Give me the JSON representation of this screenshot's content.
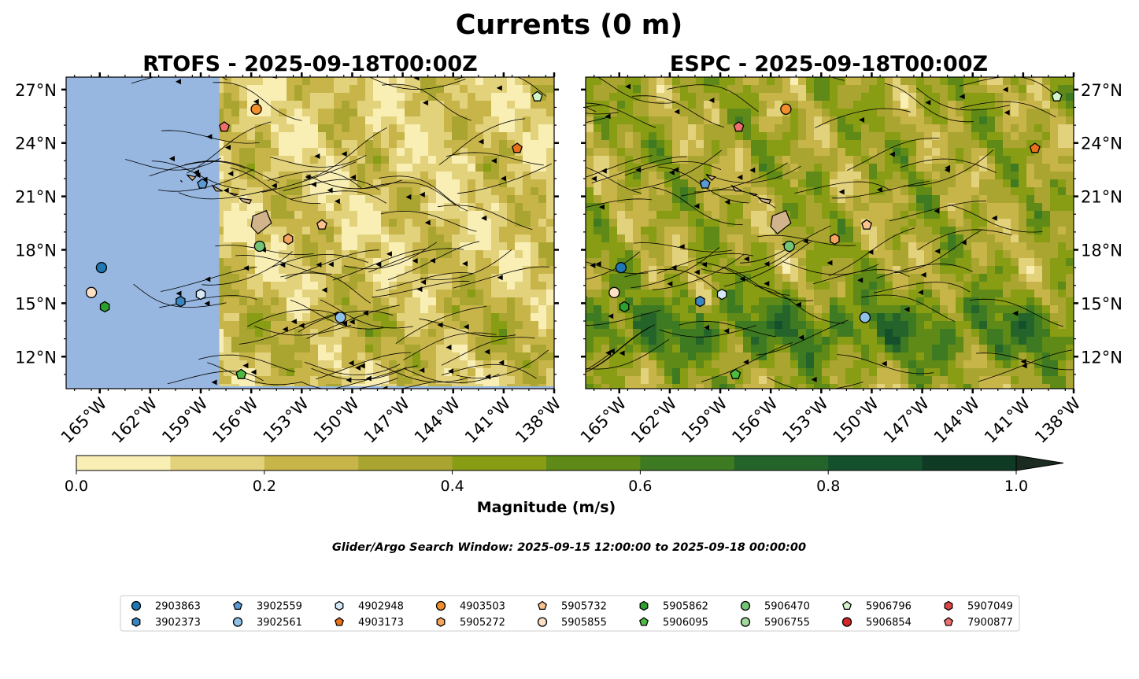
{
  "figure": {
    "suptitle": "Currents (0 m)",
    "search_window": "Glider/Argo Search Window: 2025-09-15 12:00:00 to 2025-09-18 00:00:00"
  },
  "chart_data": [
    {
      "type": "heatmap",
      "title": "RTOFS - 2025-09-18T00:00Z",
      "model": "RTOFS",
      "lon_range": [
        -167,
        -138
      ],
      "lat_range": [
        10.2,
        27.7
      ],
      "x_ticks": [
        "165°W",
        "162°W",
        "159°W",
        "156°W",
        "153°W",
        "150°W",
        "147°W",
        "144°W",
        "141°W",
        "138°W"
      ],
      "x_tick_values": [
        -165,
        -162,
        -159,
        -156,
        -153,
        -150,
        -147,
        -144,
        -141,
        -138
      ],
      "y_ticks": [
        "27°N",
        "24°N",
        "21°N",
        "18°N",
        "15°N",
        "12°N"
      ],
      "y_tick_values": [
        27,
        24,
        21,
        18,
        15,
        12
      ],
      "no_data_west_of": -157.9,
      "markers": [
        {
          "id": "2903863",
          "lon": -164.9,
          "lat": 17.0
        },
        {
          "id": "3902373",
          "lon": -160.2,
          "lat": 15.1
        },
        {
          "id": "3902559",
          "lon": -158.9,
          "lat": 21.7
        },
        {
          "id": "3902561",
          "lon": -150.7,
          "lat": 14.2
        },
        {
          "id": "4902948",
          "lon": -159.0,
          "lat": 15.5
        },
        {
          "id": "4903173",
          "lon": -140.2,
          "lat": 23.7
        },
        {
          "id": "4903503",
          "lon": -155.7,
          "lat": 25.9
        },
        {
          "id": "5905272",
          "lon": -153.8,
          "lat": 18.6
        },
        {
          "id": "5905732",
          "lon": -151.8,
          "lat": 19.4
        },
        {
          "id": "5905855",
          "lon": -165.5,
          "lat": 15.6
        },
        {
          "id": "5905862",
          "lon": -164.7,
          "lat": 14.8
        },
        {
          "id": "5906095",
          "lon": -156.6,
          "lat": 11.0
        },
        {
          "id": "5906470",
          "lon": -155.5,
          "lat": 18.2
        },
        {
          "id": "5906796",
          "lon": -139.0,
          "lat": 26.6
        },
        {
          "id": "7900877",
          "lon": -157.6,
          "lat": 24.9
        }
      ]
    },
    {
      "type": "heatmap",
      "title": "ESPC - 2025-09-18T00:00Z",
      "model": "ESPC",
      "lon_range": [
        -167,
        -138
      ],
      "lat_range": [
        10.2,
        27.7
      ],
      "x_ticks": [
        "165°W",
        "162°W",
        "159°W",
        "156°W",
        "153°W",
        "150°W",
        "147°W",
        "144°W",
        "141°W",
        "138°W"
      ],
      "x_tick_values": [
        -165,
        -162,
        -159,
        -156,
        -153,
        -150,
        -147,
        -144,
        -141,
        -138
      ],
      "y_ticks": [
        "27°N",
        "24°N",
        "21°N",
        "18°N",
        "15°N",
        "12°N"
      ],
      "y_tick_values": [
        27,
        24,
        21,
        18,
        15,
        12
      ],
      "markers": [
        {
          "id": "2903863",
          "lon": -164.9,
          "lat": 17.0
        },
        {
          "id": "3902373",
          "lon": -160.2,
          "lat": 15.1
        },
        {
          "id": "3902559",
          "lon": -159.9,
          "lat": 21.7
        },
        {
          "id": "3902561",
          "lon": -150.4,
          "lat": 14.2
        },
        {
          "id": "4902948",
          "lon": -158.9,
          "lat": 15.5
        },
        {
          "id": "4903173",
          "lon": -140.3,
          "lat": 23.7
        },
        {
          "id": "4903503",
          "lon": -155.1,
          "lat": 25.9
        },
        {
          "id": "5905272",
          "lon": -152.2,
          "lat": 18.6
        },
        {
          "id": "5905732",
          "lon": -150.3,
          "lat": 19.4
        },
        {
          "id": "5905855",
          "lon": -165.3,
          "lat": 15.6
        },
        {
          "id": "5905862",
          "lon": -164.7,
          "lat": 14.8
        },
        {
          "id": "5906095",
          "lon": -158.1,
          "lat": 11.0
        },
        {
          "id": "5906470",
          "lon": -154.9,
          "lat": 18.2
        },
        {
          "id": "5906796",
          "lon": -139.0,
          "lat": 26.6
        },
        {
          "id": "7900877",
          "lon": -157.9,
          "lat": 24.9
        }
      ]
    }
  ],
  "colorbar": {
    "label": "Magnitude (m/s)",
    "range": [
      0.0,
      1.0
    ],
    "ticks": [
      "0.0",
      "0.2",
      "0.4",
      "0.6",
      "0.8",
      "1.0"
    ],
    "tick_values": [
      0.0,
      0.2,
      0.4,
      0.6,
      0.8,
      1.0
    ],
    "levels": [
      0.0,
      0.1,
      0.2,
      0.3,
      0.4,
      0.5,
      0.6,
      0.7,
      0.8,
      0.9,
      1.0
    ],
    "colors": [
      "#f9efb5",
      "#e3d27c",
      "#c8b54a",
      "#a9a530",
      "#889c14",
      "#5f8a17",
      "#3d7a22",
      "#24642a",
      "#14502c",
      "#0f3b25",
      "#1b2b1f"
    ],
    "extend": "max"
  },
  "land_color": "#d2b48c",
  "nodata_color": "#97b6e0",
  "legend": [
    {
      "id": "2903863",
      "marker": "circle",
      "color": "#1f77b4"
    },
    {
      "id": "3902373",
      "marker": "hexagon",
      "color": "#3a86c2"
    },
    {
      "id": "3902559",
      "marker": "pentagon",
      "color": "#5a9bd5"
    },
    {
      "id": "3902561",
      "marker": "circle",
      "color": "#8fc1e8"
    },
    {
      "id": "4902948",
      "marker": "hexagon",
      "color": "#d4e8f8"
    },
    {
      "id": "4903173",
      "marker": "pentagon",
      "color": "#e8711a"
    },
    {
      "id": "4903503",
      "marker": "circle",
      "color": "#f28e2b"
    },
    {
      "id": "5905272",
      "marker": "hexagon",
      "color": "#f7a55e"
    },
    {
      "id": "5905732",
      "marker": "pentagon",
      "color": "#fbc28f"
    },
    {
      "id": "5905855",
      "marker": "circle",
      "color": "#fde0c5"
    },
    {
      "id": "5905862",
      "marker": "hexagon",
      "color": "#2ca02c"
    },
    {
      "id": "5906095",
      "marker": "pentagon",
      "color": "#4cbb3f"
    },
    {
      "id": "5906470",
      "marker": "circle",
      "color": "#74c476"
    },
    {
      "id": "5906755",
      "marker": "circle",
      "color": "#a1d99b"
    },
    {
      "id": "5906796",
      "marker": "pentagon",
      "color": "#d1f5c9"
    },
    {
      "id": "5906854",
      "marker": "circle",
      "color": "#d62728"
    },
    {
      "id": "5907049",
      "marker": "hexagon",
      "color": "#e04545"
    },
    {
      "id": "7900877",
      "marker": "pentagon",
      "color": "#ef6f6f"
    }
  ]
}
